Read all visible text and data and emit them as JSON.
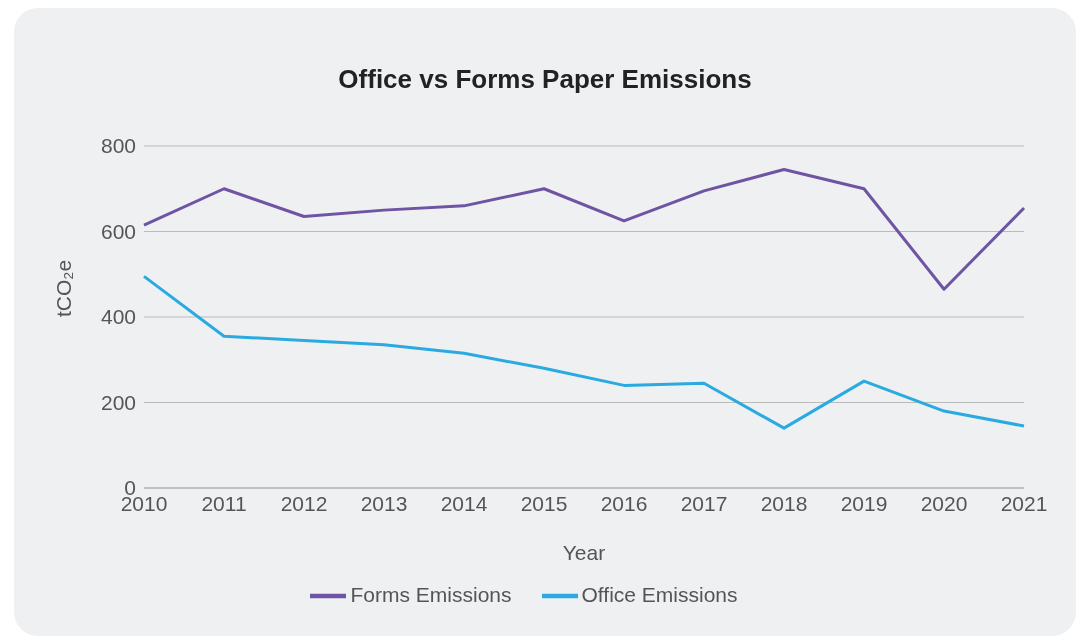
{
  "chart_data": {
    "type": "line",
    "title": "Office vs Forms Paper Emissions",
    "xlabel": "Year",
    "ylabel": "tCO₂e",
    "categories": [
      "2010",
      "2011",
      "2012",
      "2013",
      "2014",
      "2015",
      "2016",
      "2017",
      "2018",
      "2019",
      "2020",
      "2021"
    ],
    "series": [
      {
        "name": "Office Emissions",
        "color": "#29aae1",
        "values": [
          495,
          355,
          345,
          335,
          315,
          280,
          240,
          245,
          140,
          250,
          180,
          145
        ]
      },
      {
        "name": "Forms Emissions",
        "color": "#6e54a3",
        "values": [
          615,
          700,
          635,
          650,
          660,
          700,
          625,
          695,
          745,
          700,
          465,
          655
        ]
      }
    ],
    "ylim": [
      0,
      800
    ],
    "yticks": [
      0,
      200,
      400,
      600,
      800
    ],
    "grid": "y",
    "legend": "bottom",
    "marker": "none",
    "line_style": "solid"
  }
}
